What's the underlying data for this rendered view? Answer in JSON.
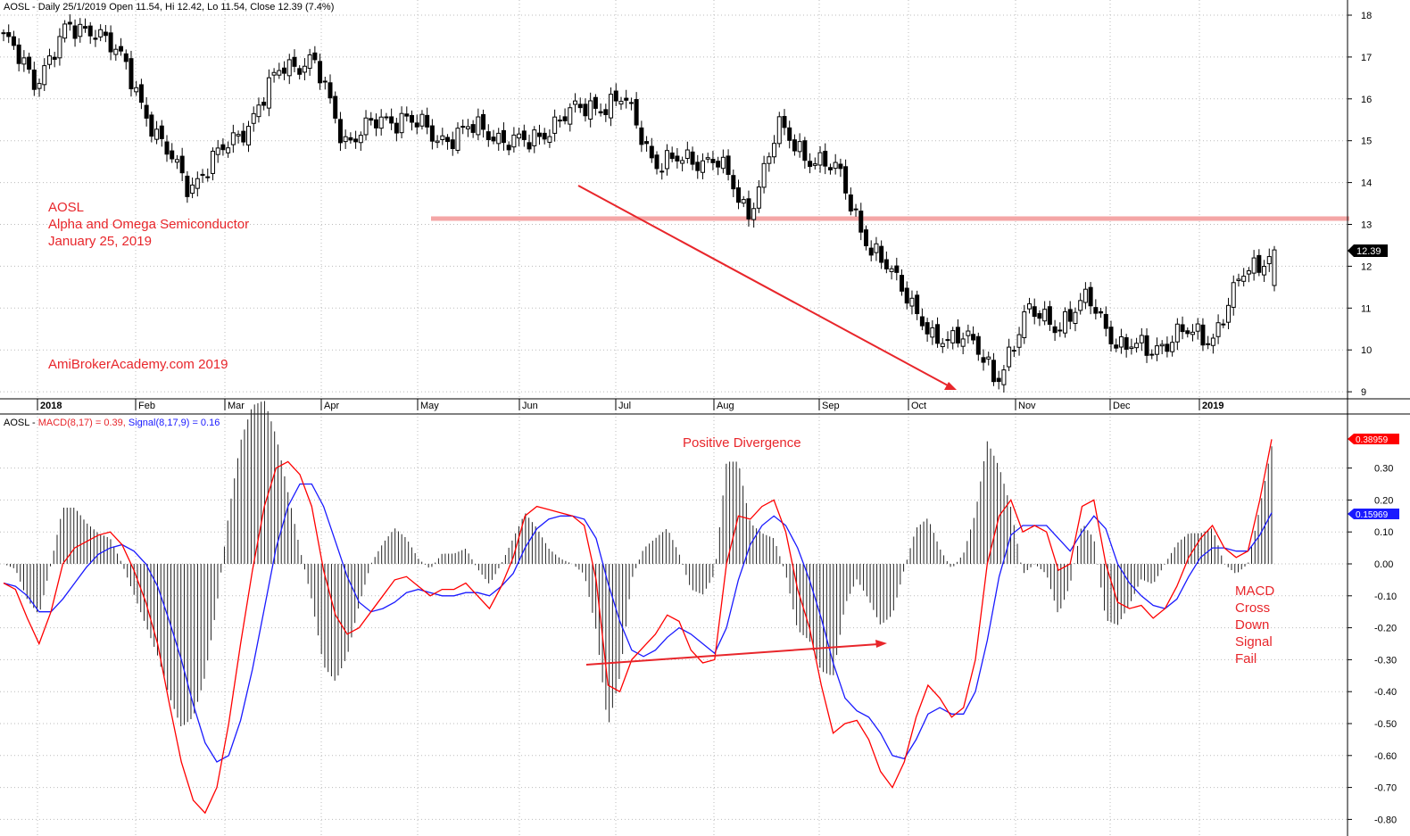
{
  "header": {
    "price_text": "AOSL - Daily 25/1/2019 Open 11.54, Hi 12.42, Lo 11.54, Close 12.39 (7.4%)",
    "macd_prefix": "AOSL - ",
    "macd_part": "MACD(8,17) = 0.39, ",
    "signal_part": "Signal(8,17,9) = 0.16"
  },
  "annotations": {
    "ticker": "AOSL",
    "company": "Alpha and Omega Semiconductor",
    "date": "January 25, 2019",
    "watermark": "AmiBrokerAcademy.com  2019",
    "divergence": "Positive Divergence",
    "macd_note": [
      "MACD",
      "Cross",
      "Down",
      "Signal",
      "Fail"
    ]
  },
  "colors": {
    "macd": "#ff0000",
    "signal": "#1a1aff",
    "histogram": "#222222",
    "support": "#f4a6a6",
    "annotation": "#e8262b",
    "grid": "#bbbbbb"
  },
  "chart_data": [
    {
      "type": "candlestick",
      "ticker": "AOSL",
      "title": "AOSL - Daily 25/1/2019 Open 11.54, Hi 12.42, Lo 11.54, Close 12.39 (7.4%)",
      "x_labels": [
        "2018",
        "Feb",
        "Mar",
        "Apr",
        "May",
        "Jun",
        "Jul",
        "Aug",
        "Sep",
        "Oct",
        "Nov",
        "Dec",
        "2019"
      ],
      "y_ticks": [
        9,
        10,
        11,
        12,
        13,
        14,
        15,
        16,
        17,
        18
      ],
      "ylim": [
        8.8,
        18.6
      ],
      "support_level": 13.15,
      "last_close_label": "12.39",
      "grid": true,
      "close_keypoints": [
        {
          "x": "Jan 2018",
          "y": 17.5
        },
        {
          "x": "Jan 2018",
          "y": 16.4
        },
        {
          "x": "Jan 2018",
          "y": 17.6
        },
        {
          "x": "Jan 2018",
          "y": 17.7
        },
        {
          "x": "Feb",
          "y": 16.7
        },
        {
          "x": "Feb",
          "y": 15.0
        },
        {
          "x": "Feb",
          "y": 13.9
        },
        {
          "x": "Feb",
          "y": 14.7
        },
        {
          "x": "Mar",
          "y": 15.5
        },
        {
          "x": "Mar",
          "y": 16.8
        },
        {
          "x": "Mar",
          "y": 16.9
        },
        {
          "x": "Apr",
          "y": 15.0
        },
        {
          "x": "Apr",
          "y": 15.4
        },
        {
          "x": "Apr",
          "y": 15.6
        },
        {
          "x": "May",
          "y": 15.0
        },
        {
          "x": "May",
          "y": 15.3
        },
        {
          "x": "May",
          "y": 15.1
        },
        {
          "x": "May",
          "y": 14.9
        },
        {
          "x": "Jun",
          "y": 15.6
        },
        {
          "x": "Jun",
          "y": 15.8
        },
        {
          "x": "Jun",
          "y": 16.0
        },
        {
          "x": "Jul",
          "y": 14.5
        },
        {
          "x": "Jul",
          "y": 14.5
        },
        {
          "x": "Jul",
          "y": 14.6
        },
        {
          "x": "Aug",
          "y": 13.2
        },
        {
          "x": "Aug",
          "y": 15.3
        },
        {
          "x": "Aug",
          "y": 14.6
        },
        {
          "x": "Sep",
          "y": 14.2
        },
        {
          "x": "Sep",
          "y": 12.3
        },
        {
          "x": "Sep",
          "y": 11.6
        },
        {
          "x": "Oct",
          "y": 10.1
        },
        {
          "x": "Oct",
          "y": 10.5
        },
        {
          "x": "Oct",
          "y": 9.2
        },
        {
          "x": "Nov",
          "y": 10.9
        },
        {
          "x": "Nov",
          "y": 10.6
        },
        {
          "x": "Nov",
          "y": 11.2
        },
        {
          "x": "Dec",
          "y": 10.1
        },
        {
          "x": "Dec",
          "y": 10.0
        },
        {
          "x": "2019",
          "y": 10.4
        },
        {
          "x": "2019",
          "y": 10.3
        },
        {
          "x": "2019",
          "y": 11.8
        },
        {
          "x": "2019",
          "y": 12.39
        }
      ]
    },
    {
      "type": "line",
      "title": "AOSL - MACD(8,17) = 0.39, Signal(8,17,9) = 0.16",
      "y_ticks": [
        0.3,
        0.2,
        0.1,
        0.0,
        -0.1,
        -0.2,
        -0.3,
        -0.4,
        -0.5,
        -0.6,
        -0.7,
        -0.8
      ],
      "ylim": [
        -0.82,
        0.39
      ],
      "macd_label": "0.38959",
      "signal_label": "0.15969",
      "series": [
        {
          "name": "MACD(8,17)",
          "values": [
            -0.06,
            -0.08,
            -0.17,
            -0.25,
            -0.15,
            0.0,
            0.05,
            0.07,
            0.09,
            0.1,
            0.06,
            -0.02,
            -0.12,
            -0.25,
            -0.44,
            -0.62,
            -0.74,
            -0.78,
            -0.7,
            -0.5,
            -0.25,
            -0.02,
            0.18,
            0.3,
            0.32,
            0.28,
            0.18,
            -0.02,
            -0.16,
            -0.22,
            -0.2,
            -0.15,
            -0.1,
            -0.05,
            -0.04,
            -0.07,
            -0.1,
            -0.08,
            -0.08,
            -0.06,
            -0.1,
            -0.14,
            -0.07,
            0.02,
            0.15,
            0.18,
            0.17,
            0.16,
            0.15,
            0.12,
            -0.05,
            -0.38,
            -0.4,
            -0.3,
            -0.26,
            -0.22,
            -0.16,
            -0.18,
            -0.27,
            -0.31,
            -0.3,
            0.0,
            0.15,
            0.14,
            0.18,
            0.2,
            0.1,
            -0.08,
            -0.2,
            -0.38,
            -0.53,
            -0.5,
            -0.49,
            -0.55,
            -0.65,
            -0.7,
            -0.62,
            -0.48,
            -0.38,
            -0.42,
            -0.48,
            -0.45,
            -0.3,
            0.0,
            0.15,
            0.2,
            0.1,
            0.12,
            0.1,
            -0.02,
            0.0,
            0.18,
            0.2,
            0.0,
            -0.12,
            -0.14,
            -0.13,
            -0.17,
            -0.14,
            -0.07,
            0.02,
            0.08,
            0.12,
            0.05,
            0.02,
            0.04,
            0.2,
            0.39
          ]
        },
        {
          "name": "Signal(8,17,9)",
          "values": [
            -0.06,
            -0.07,
            -0.1,
            -0.15,
            -0.15,
            -0.11,
            -0.06,
            -0.01,
            0.03,
            0.05,
            0.06,
            0.04,
            0.0,
            -0.07,
            -0.18,
            -0.3,
            -0.44,
            -0.56,
            -0.62,
            -0.6,
            -0.49,
            -0.33,
            -0.14,
            0.05,
            0.18,
            0.25,
            0.25,
            0.18,
            0.07,
            -0.04,
            -0.12,
            -0.15,
            -0.14,
            -0.12,
            -0.09,
            -0.08,
            -0.09,
            -0.1,
            -0.1,
            -0.09,
            -0.09,
            -0.1,
            -0.07,
            -0.03,
            0.05,
            0.11,
            0.14,
            0.15,
            0.15,
            0.14,
            0.08,
            -0.06,
            -0.18,
            -0.27,
            -0.29,
            -0.27,
            -0.23,
            -0.2,
            -0.22,
            -0.25,
            -0.28,
            -0.2,
            -0.05,
            0.06,
            0.12,
            0.15,
            0.12,
            0.05,
            -0.05,
            -0.17,
            -0.31,
            -0.42,
            -0.46,
            -0.48,
            -0.53,
            -0.6,
            -0.61,
            -0.55,
            -0.47,
            -0.45,
            -0.47,
            -0.47,
            -0.4,
            -0.24,
            -0.04,
            0.09,
            0.12,
            0.12,
            0.12,
            0.08,
            0.04,
            0.1,
            0.15,
            0.11,
            0.0,
            -0.06,
            -0.1,
            -0.13,
            -0.14,
            -0.11,
            -0.04,
            0.02,
            0.05,
            0.05,
            0.04,
            0.04,
            0.09,
            0.16
          ]
        }
      ]
    }
  ]
}
